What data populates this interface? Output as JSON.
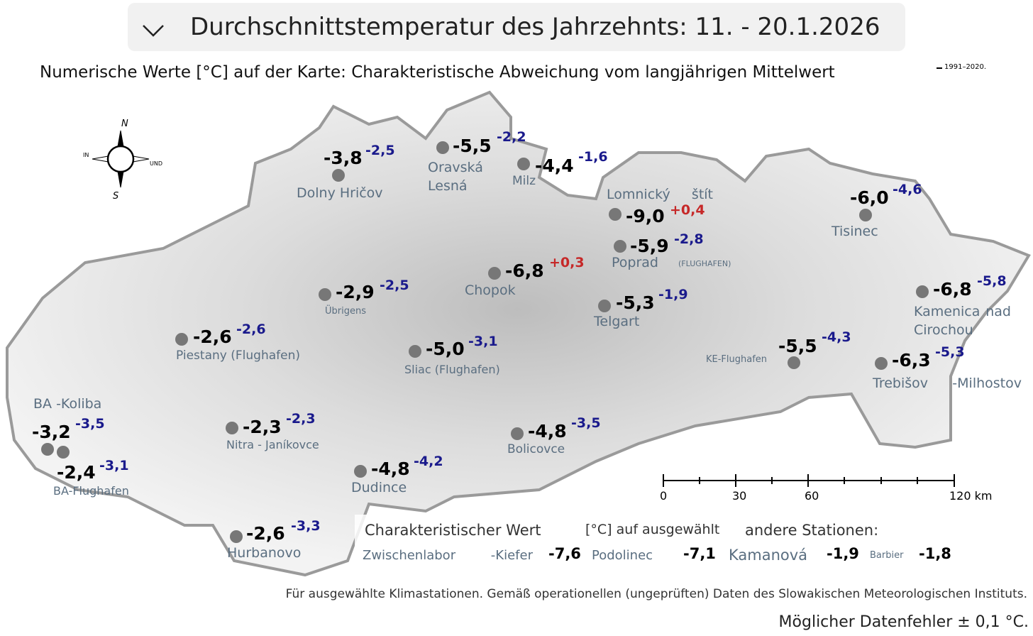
{
  "header": {
    "title": "Durchschnittstemperatur des Jahrzehnts: 11. - 20.1.2026",
    "subtitle": "Numerische Werte [°C] auf der Karte: Charakteristische Abweichung vom langjährigen Mittelwert",
    "reference": "1991–2020."
  },
  "compass": {
    "north": "N",
    "south": "S",
    "west": "IN",
    "east": "UND"
  },
  "stations": [
    {
      "name": "Dolny Hričov",
      "value": "-3,8",
      "deviation": "-2,5"
    },
    {
      "name": "Oravská Lesná",
      "value": "-5,5",
      "deviation": "-2,2"
    },
    {
      "name": "Milz",
      "value": "-4,4",
      "deviation": "-1,6"
    },
    {
      "name": "Lomnický štít",
      "value": "-9,0",
      "deviation": "+0,4"
    },
    {
      "name": "Poprad",
      "value": "-5,9",
      "deviation": "-2,8",
      "note": "(FLUGHAFEN)"
    },
    {
      "name": "Chopok",
      "value": "-6,8",
      "deviation": "+0,3"
    },
    {
      "name": "Telgart",
      "value": "-5,3",
      "deviation": "-1,9"
    },
    {
      "name": "Übrigens",
      "value": "-2,9",
      "deviation": "-2,5"
    },
    {
      "name": "Piestany (Flughafen)",
      "value": "-2,6",
      "deviation": "-2,6"
    },
    {
      "name": "Sliac (Flughafen)",
      "value": "-5,0",
      "deviation": "-3,1"
    },
    {
      "name": "Tisinec",
      "value": "-6,0",
      "deviation": "-4,6"
    },
    {
      "name": "Kamenica nad Cirochou",
      "value": "-6,8",
      "deviation": "-5,8"
    },
    {
      "name": "KE-Flughafen",
      "value": "-5,5",
      "deviation": "-4,3"
    },
    {
      "name": "Trebišov -Milhostov",
      "value": "-6,3",
      "deviation": "-5,3"
    },
    {
      "name": "BA -Koliba",
      "value": "-3,2",
      "deviation": "-3,5"
    },
    {
      "name": "BA-Flughafen",
      "value": "-2,4",
      "deviation": "-3,1"
    },
    {
      "name": "Nitra - Janíkovce",
      "value": "-2,3",
      "deviation": "-2,3"
    },
    {
      "name": "Bolicovce",
      "value": "-4,8",
      "deviation": "-3,5"
    },
    {
      "name": "Dudince",
      "value": "-4,8",
      "deviation": "-4,2"
    },
    {
      "name": "Hurbanovo",
      "value": "-2,6",
      "deviation": "-3,3"
    }
  ],
  "scale": {
    "labels": [
      "0",
      "30",
      "60",
      "120 km"
    ]
  },
  "legend": {
    "col1": "Charakteristischer Wert",
    "col2": "[°C] auf ausgewählt",
    "col3": "andere Stationen:",
    "others": [
      {
        "name": "Zwischenlabor -Kiefer",
        "value": "-7,6"
      },
      {
        "name": "Podolinec",
        "value": "-7,1"
      },
      {
        "name": "Kamanová",
        "value": "-1,9"
      },
      {
        "name": "Barbier",
        "value": "-1,8"
      }
    ]
  },
  "footer": {
    "note": "Für ausgewählte Klimastationen. Gemäß operationellen (ungeprüften) Daten des Slowakischen Meteorologischen Instituts.",
    "error": "Möglicher Datenfehler ± 0,1 °C."
  }
}
